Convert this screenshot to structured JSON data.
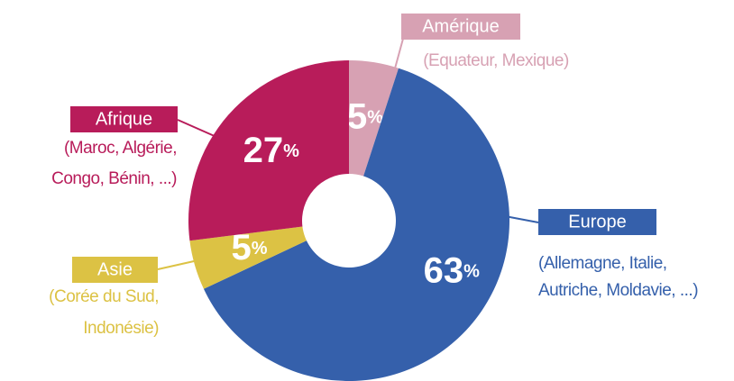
{
  "chart_data": {
    "type": "donut",
    "categories": [
      "Amérique",
      "Europe",
      "Asie",
      "Afrique"
    ],
    "values": [
      5,
      63,
      5,
      27
    ],
    "value_labels": [
      "5%",
      "63%",
      "5%",
      "27%"
    ],
    "colors": [
      "#d7a1b3",
      "#3560ab",
      "#dcc244",
      "#b81c5a"
    ],
    "notes": [
      [
        "(Equateur, Mexique)"
      ],
      [
        "(Allemagne, Italie,",
        "Autriche, Moldavie, ...)"
      ],
      [
        "(Corée du Sud,",
        "Indonésie)"
      ],
      [
        "(Maroc, Algérie,",
        "Congo, Bénin, ...)"
      ]
    ]
  }
}
